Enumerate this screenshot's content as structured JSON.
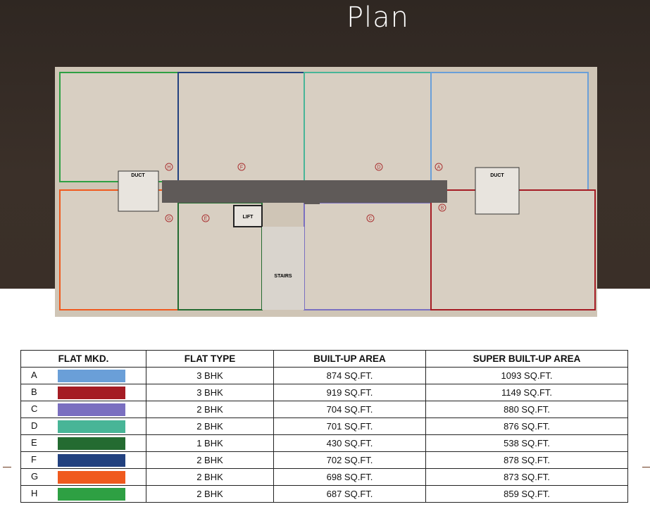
{
  "title": "Plan",
  "plan": {
    "labels": {
      "duct": "DUCT",
      "lift": "LIFT",
      "stairs": "STAIRS"
    },
    "flats": [
      {
        "mark": "H",
        "color": "#2ea043"
      },
      {
        "mark": "F",
        "color": "#22417f"
      },
      {
        "mark": "D",
        "color": "#48b597"
      },
      {
        "mark": "A",
        "color": "#6a9fd8"
      },
      {
        "mark": "G",
        "color": "#f05a1e"
      },
      {
        "mark": "E",
        "color": "#246b31"
      },
      {
        "mark": "C",
        "color": "#7a6fc0"
      },
      {
        "mark": "B",
        "color": "#a51c24"
      }
    ]
  },
  "table": {
    "headers": [
      "FLAT MKD.",
      "FLAT TYPE",
      "BUILT-UP AREA",
      "SUPER BUILT-UP AREA"
    ],
    "rows": [
      {
        "mark": "A",
        "color": "#6a9fd8",
        "type": "3 BHK",
        "built": "874 SQ.FT.",
        "super": "1093 SQ.FT."
      },
      {
        "mark": "B",
        "color": "#a51c24",
        "type": "3 BHK",
        "built": "919 SQ.FT.",
        "super": "1149 SQ.FT."
      },
      {
        "mark": "C",
        "color": "#7a6fc0",
        "type": "2 BHK",
        "built": "704 SQ.FT.",
        "super": "880 SQ.FT."
      },
      {
        "mark": "D",
        "color": "#48b597",
        "type": "2 BHK",
        "built": "701 SQ.FT.",
        "super": "876 SQ.FT."
      },
      {
        "mark": "E",
        "color": "#246b31",
        "type": "1 BHK",
        "built": "430 SQ.FT.",
        "super": "538 SQ.FT."
      },
      {
        "mark": "F",
        "color": "#22417f",
        "type": "2 BHK",
        "built": "702 SQ.FT.",
        "super": "878 SQ.FT."
      },
      {
        "mark": "G",
        "color": "#f05a1e",
        "type": "2 BHK",
        "built": "698 SQ.FT.",
        "super": "873 SQ.FT."
      },
      {
        "mark": "H",
        "color": "#2ea043",
        "type": "2 BHK",
        "built": "687 SQ.FT.",
        "super": "859 SQ.FT."
      }
    ]
  }
}
